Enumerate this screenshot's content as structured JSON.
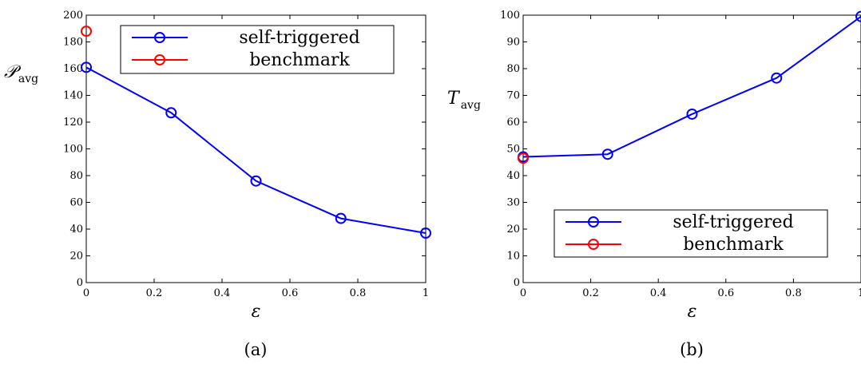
{
  "chart_data": [
    {
      "type": "line",
      "caption": "(a)",
      "xlabel": "ε",
      "ylabel_main": "𝒫",
      "ylabel_sub": "avg",
      "xlim": [
        0,
        1
      ],
      "ylim": [
        0,
        200
      ],
      "x_ticks": [
        "0",
        "0.2",
        "0.4",
        "0.6",
        "0.8",
        "1"
      ],
      "y_ticks": [
        "0",
        "20",
        "40",
        "60",
        "80",
        "100",
        "120",
        "140",
        "160",
        "180",
        "200"
      ],
      "grid": false,
      "legend_position": "top-right",
      "series": [
        {
          "name": "self-triggered",
          "color": "#0000ff",
          "marker": "circle",
          "x": [
            0,
            0.25,
            0.5,
            0.75,
            1
          ],
          "y": [
            161,
            127,
            76,
            48,
            37
          ]
        },
        {
          "name": "benchmark",
          "color": "#ff0000",
          "marker": "circle",
          "x": [
            0
          ],
          "y": [
            188
          ]
        }
      ]
    },
    {
      "type": "line",
      "caption": "(b)",
      "xlabel": "ε",
      "ylabel_main": "T",
      "ylabel_sub": "avg",
      "xlim": [
        0,
        1
      ],
      "ylim": [
        0,
        100
      ],
      "x_ticks": [
        "0",
        "0.2",
        "0.4",
        "0.6",
        "0.8",
        "1"
      ],
      "y_ticks": [
        "0",
        "10",
        "20",
        "30",
        "40",
        "50",
        "60",
        "70",
        "80",
        "90",
        "100"
      ],
      "grid": false,
      "legend_position": "bottom-right",
      "series": [
        {
          "name": "self-triggered",
          "color": "#0000ff",
          "marker": "circle",
          "x": [
            0,
            0.25,
            0.5,
            0.75,
            1
          ],
          "y": [
            47,
            48,
            63,
            76.5,
            99.5
          ]
        },
        {
          "name": "benchmark",
          "color": "#ff0000",
          "marker": "circle",
          "x": [
            0
          ],
          "y": [
            46.5
          ]
        }
      ]
    }
  ]
}
